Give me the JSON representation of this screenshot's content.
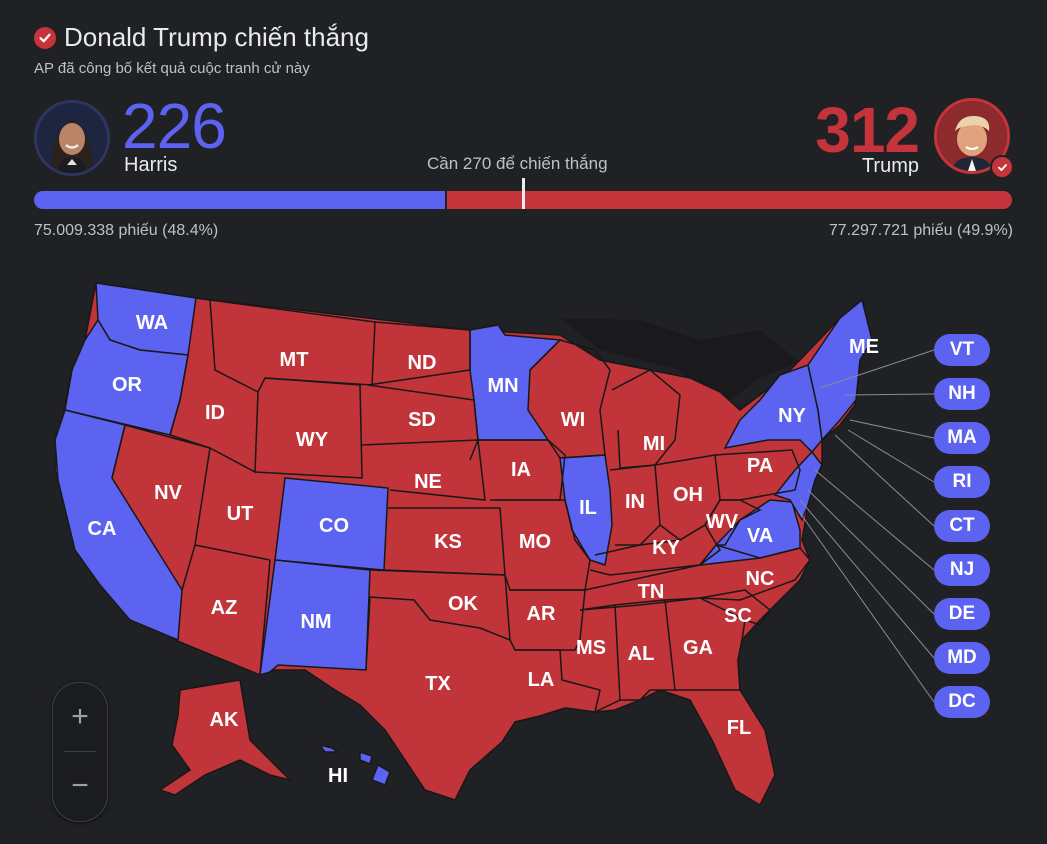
{
  "header": {
    "title": "Donald Trump chiến thắng",
    "subtitle": "AP đã công bố kết quả cuộc tranh cử này"
  },
  "harris": {
    "name": "Harris",
    "electoral_votes": "226",
    "popular_votes": "75.009.338 phiếu (48.4%)",
    "color": "#5b63f0"
  },
  "trump": {
    "name": "Trump",
    "electoral_votes": "312",
    "popular_votes": "77.297.721 phiếu (49.9%)",
    "color": "#c5343a"
  },
  "needed_label": "Cần 270 để chiến thắng",
  "bar": {
    "total": 538,
    "harris": 226,
    "trump": 312,
    "threshold": 270
  },
  "map": {
    "state_labels": {
      "WA": "WA",
      "OR": "OR",
      "CA": "CA",
      "NV": "NV",
      "ID": "ID",
      "MT": "MT",
      "WY": "WY",
      "UT": "UT",
      "AZ": "AZ",
      "CO": "CO",
      "NM": "NM",
      "ND": "ND",
      "SD": "SD",
      "NE": "NE",
      "KS": "KS",
      "OK": "OK",
      "TX": "TX",
      "MN": "MN",
      "IA": "IA",
      "MO": "MO",
      "AR": "AR",
      "LA": "LA",
      "WI": "WI",
      "IL": "IL",
      "MI": "MI",
      "IN": "IN",
      "OH": "OH",
      "KY": "KY",
      "TN": "TN",
      "MS": "MS",
      "AL": "AL",
      "GA": "GA",
      "FL": "FL",
      "SC": "SC",
      "NC": "NC",
      "VA": "VA",
      "WV": "WV",
      "PA": "PA",
      "NY": "NY",
      "ME": "ME",
      "AK": "AK",
      "HI": "HI"
    },
    "small_states": [
      "VT",
      "NH",
      "MA",
      "RI",
      "CT",
      "NJ",
      "DE",
      "MD",
      "DC"
    ]
  },
  "zoom": {
    "in": "+",
    "out": "−"
  }
}
